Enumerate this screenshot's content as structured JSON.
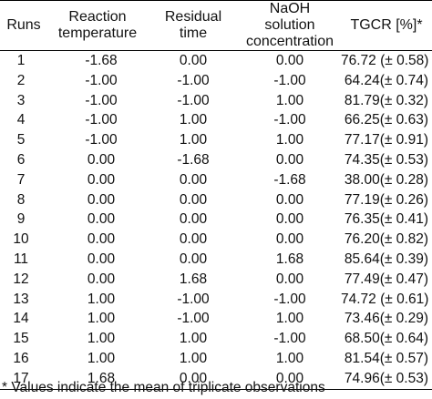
{
  "table": {
    "headers": {
      "runs": "Runs",
      "temperature_line1": "Reaction",
      "temperature_line2": "temperature",
      "time_line1": "Residual",
      "time_line2": "time",
      "naoh_line1": "NaOH",
      "naoh_line2": "solution",
      "naoh_line3": "concentration",
      "tgcr": "TGCR [%]*"
    },
    "rows": [
      {
        "run": "1",
        "temperature": "-1.68",
        "time": "0.00",
        "naoh": "0.00",
        "tgcr": "76.72 (± 0.58)"
      },
      {
        "run": "2",
        "temperature": "-1.00",
        "time": "-1.00",
        "naoh": "-1.00",
        "tgcr": "64.24(± 0.74)"
      },
      {
        "run": "3",
        "temperature": "-1.00",
        "time": "-1.00",
        "naoh": "1.00",
        "tgcr": "81.79(± 0.32)"
      },
      {
        "run": "4",
        "temperature": "-1.00",
        "time": "1.00",
        "naoh": "-1.00",
        "tgcr": "66.25(± 0.63)"
      },
      {
        "run": "5",
        "temperature": "-1.00",
        "time": "1.00",
        "naoh": "1.00",
        "tgcr": "77.17(± 0.91)"
      },
      {
        "run": "6",
        "temperature": "0.00",
        "time": "-1.68",
        "naoh": "0.00",
        "tgcr": "74.35(± 0.53)"
      },
      {
        "run": "7",
        "temperature": "0.00",
        "time": "0.00",
        "naoh": "-1.68",
        "tgcr": "38.00(± 0.28)"
      },
      {
        "run": "8",
        "temperature": "0.00",
        "time": "0.00",
        "naoh": "0.00",
        "tgcr": "77.19(± 0.26)"
      },
      {
        "run": "9",
        "temperature": "0.00",
        "time": "0.00",
        "naoh": "0.00",
        "tgcr": "76.35(± 0.41)"
      },
      {
        "run": "10",
        "temperature": "0.00",
        "time": "0.00",
        "naoh": "0.00",
        "tgcr": "76.20(± 0.82)"
      },
      {
        "run": "11",
        "temperature": "0.00",
        "time": "0.00",
        "naoh": "1.68",
        "tgcr": "85.64(± 0.39)"
      },
      {
        "run": "12",
        "temperature": "0.00",
        "time": "1.68",
        "naoh": "0.00",
        "tgcr": "77.49(± 0.47)"
      },
      {
        "run": "13",
        "temperature": "1.00",
        "time": "-1.00",
        "naoh": "-1.00",
        "tgcr": "74.72 (± 0.61)"
      },
      {
        "run": "14",
        "temperature": "1.00",
        "time": "-1.00",
        "naoh": "1.00",
        "tgcr": "73.46(± 0.29)"
      },
      {
        "run": "15",
        "temperature": "1.00",
        "time": "1.00",
        "naoh": "-1.00",
        "tgcr": "68.50(± 0.64)"
      },
      {
        "run": "16",
        "temperature": "1.00",
        "time": "1.00",
        "naoh": "1.00",
        "tgcr": "81.54(± 0.57)"
      },
      {
        "run": "17",
        "temperature": "1.68",
        "time": "0.00",
        "naoh": "0.00",
        "tgcr": "74.96(± 0.53)"
      }
    ]
  },
  "footnote": "* Values indicate the mean of triplicate observations"
}
